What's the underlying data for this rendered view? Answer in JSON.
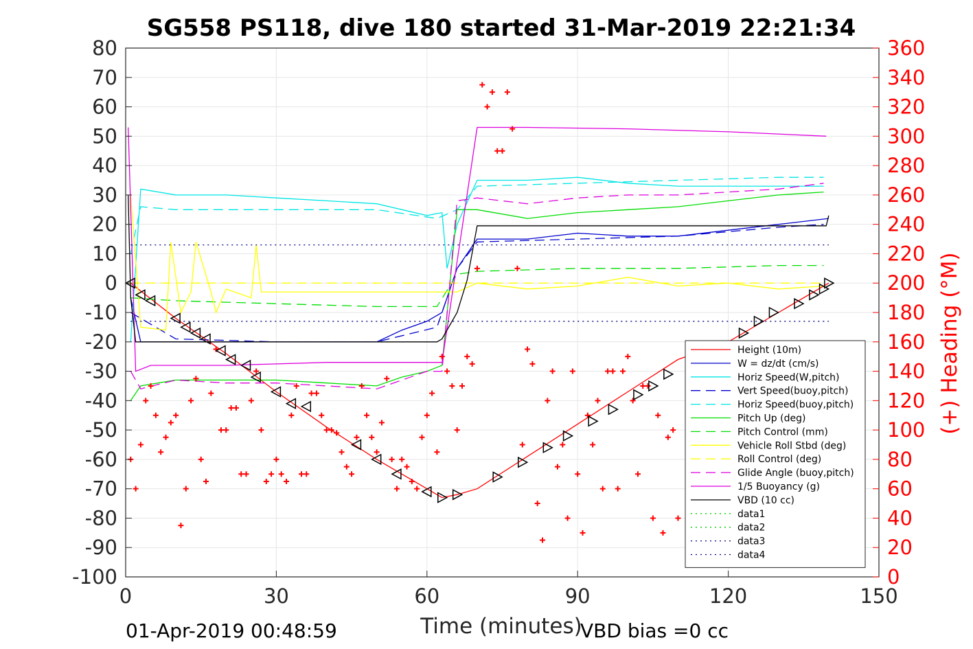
{
  "chart_data": {
    "type": "line",
    "title": "SG558 PS118, dive 180 started 31-Mar-2019 22:21:34",
    "xlabel": "Time (minutes)",
    "ylabel_right": "(+) Heading (°M)",
    "footer_left": "01-Apr-2019 00:48:59",
    "footer_right": "VBD bias =0 cc",
    "xlim": [
      0,
      150
    ],
    "ylim": [
      -100,
      80
    ],
    "ylim_right": [
      0,
      360
    ],
    "xticks": [
      0,
      30,
      60,
      90,
      120,
      150
    ],
    "yticks": [
      80,
      70,
      60,
      50,
      40,
      30,
      20,
      10,
      0,
      -10,
      -20,
      -30,
      -40,
      -50,
      -60,
      -70,
      -80,
      -90,
      -100
    ],
    "yticks_right": [
      360,
      340,
      320,
      300,
      280,
      260,
      240,
      220,
      200,
      180,
      160,
      140,
      120,
      100,
      80,
      60,
      40,
      20,
      0
    ],
    "grid": true,
    "legend_position": "bottom-right",
    "series": [
      {
        "name": "Height (10m)",
        "color": "#ff0000",
        "style": "solid",
        "x": [
          1,
          10,
          20,
          30,
          40,
          50,
          60,
          63,
          66,
          70,
          80,
          90,
          100,
          110,
          120,
          130,
          140
        ],
        "y": [
          0,
          -12,
          -24,
          -37,
          -49,
          -60,
          -70,
          -73,
          -72,
          -70,
          -59,
          -48,
          -37,
          -26,
          -20,
          -10,
          0
        ]
      },
      {
        "name": "W = dz/dt (cm/s)",
        "color": "#0000cc",
        "style": "solid",
        "x": [
          1,
          3,
          10,
          20,
          30,
          40,
          50,
          55,
          60,
          63,
          66,
          70,
          80,
          90,
          100,
          110,
          120,
          130,
          140
        ],
        "y": [
          -5,
          -20,
          -20,
          -20,
          -20,
          -20,
          -20,
          -16,
          -13,
          -10,
          5,
          15,
          15,
          17,
          16,
          16,
          18,
          20,
          22
        ]
      },
      {
        "name": "Horiz Speed(W,pitch)",
        "color": "#00e5e5",
        "style": "solid",
        "x": [
          1,
          3,
          10,
          20,
          30,
          40,
          50,
          60,
          63,
          64,
          66,
          70,
          80,
          90,
          100,
          110,
          120,
          130,
          139
        ],
        "y": [
          -20,
          32,
          30,
          30,
          29,
          28,
          27,
          23,
          24,
          5,
          20,
          35,
          35,
          36,
          34,
          33,
          33,
          33,
          33
        ]
      },
      {
        "name": "Vert Speed(buoy,pitch)",
        "color": "#0000cc",
        "style": "dash",
        "x": [
          1,
          10,
          30,
          50,
          62,
          66,
          70,
          90,
          110,
          130,
          139
        ],
        "y": [
          -10,
          -19,
          -20,
          -20,
          -15,
          5,
          14,
          15,
          16,
          19,
          20
        ]
      },
      {
        "name": "Horiz Speed(buoy,pitch)",
        "color": "#00e5e5",
        "style": "dash",
        "x": [
          1,
          3,
          10,
          30,
          50,
          62,
          66,
          70,
          90,
          110,
          130,
          139
        ],
        "y": [
          10,
          26,
          25,
          25,
          25,
          22,
          25,
          33,
          34,
          35,
          36,
          36
        ]
      },
      {
        "name": "Pitch Up (deg)",
        "color": "#00dd00",
        "style": "solid",
        "x": [
          1,
          3,
          10,
          20,
          30,
          40,
          50,
          55,
          60,
          63,
          66,
          70,
          80,
          90,
          100,
          110,
          120,
          130,
          139
        ],
        "y": [
          -40,
          -35,
          -33,
          -33,
          -33,
          -34,
          -35,
          -32,
          -30,
          -28,
          25,
          25,
          22,
          24,
          25,
          26,
          28,
          30,
          31
        ]
      },
      {
        "name": "Pitch Control (mm)",
        "color": "#00dd00",
        "style": "dash",
        "x": [
          1,
          10,
          30,
          50,
          62,
          66,
          70,
          90,
          110,
          130,
          139
        ],
        "y": [
          -5,
          -6,
          -7,
          -8,
          -8,
          3,
          4,
          5,
          5,
          6,
          6
        ]
      },
      {
        "name": "Vehicle Roll Stbd (deg)",
        "color": "#ffff00",
        "style": "solid",
        "x": [
          1,
          3,
          8,
          9,
          11,
          13,
          14,
          17,
          18,
          20,
          25,
          26,
          27,
          40,
          53,
          62,
          66,
          70,
          80,
          90,
          100,
          110,
          120,
          130,
          139
        ],
        "y": [
          30,
          -15,
          -16,
          14,
          -10,
          -3,
          14,
          -3,
          -10,
          -2,
          -5,
          13,
          -3,
          -3,
          -3,
          -3,
          -3,
          0,
          -2,
          -1,
          2,
          -1,
          0,
          -2,
          -1
        ]
      },
      {
        "name": "Roll Control (deg)",
        "color": "#ffff00",
        "style": "dash",
        "x": [
          1,
          10,
          30,
          50,
          62,
          66,
          70,
          90,
          110,
          130,
          139
        ],
        "y": [
          0,
          0,
          0,
          0,
          0,
          0,
          0,
          0,
          0,
          0,
          0
        ]
      },
      {
        "name": "Glide Angle (buoy,pitch)",
        "color": "#dd00dd",
        "style": "dash",
        "x": [
          1,
          3,
          10,
          20,
          30,
          40,
          50,
          60,
          63,
          66,
          70,
          80,
          90,
          100,
          110,
          120,
          130,
          139
        ],
        "y": [
          -30,
          -36,
          -33,
          -34,
          -34,
          -35,
          -36,
          -30,
          -30,
          28,
          29,
          27,
          29,
          30,
          30,
          31,
          32,
          34
        ]
      },
      {
        "name": "1/5 Buoyancy (g)",
        "color": "#dd00dd",
        "style": "solid",
        "x": [
          0.5,
          2,
          5,
          20,
          40,
          62,
          63,
          70,
          80,
          100,
          120,
          139.5
        ],
        "y": [
          53,
          -30,
          -28,
          -28,
          -27,
          -27,
          -27,
          53,
          53,
          52.5,
          51.5,
          50
        ]
      },
      {
        "name": "VBD (10 cc)",
        "color": "#000000",
        "style": "solid",
        "x": [
          0.5,
          1,
          2,
          10,
          20,
          40,
          62,
          63,
          66,
          68,
          70,
          100,
          139.5,
          140
        ],
        "y": [
          30,
          -5,
          -20,
          -20,
          -20,
          -20,
          -20,
          -19,
          -10,
          1,
          19.5,
          19.5,
          19.5,
          23
        ]
      },
      {
        "name": "data1",
        "color": "#00cc00",
        "style": "dot",
        "x": [],
        "y": []
      },
      {
        "name": "data2",
        "color": "#00cc00",
        "style": "dot",
        "x": [],
        "y": []
      },
      {
        "name": "data3",
        "color": "#000080",
        "style": "dot",
        "x": [
          1,
          140
        ],
        "y": [
          13,
          13
        ]
      },
      {
        "name": "data4",
        "color": "#000080",
        "style": "dot",
        "x": [
          1,
          140
        ],
        "y": [
          -13,
          -13
        ]
      }
    ],
    "heading_series": {
      "name": "(+) Heading (°M)",
      "axis": "right",
      "color": "#ff0000",
      "marker": "+",
      "x": [
        1,
        2,
        3,
        4,
        5,
        6,
        7,
        8,
        9,
        10,
        11,
        12,
        13,
        14,
        15,
        16,
        17,
        18,
        19,
        20,
        21,
        22,
        23,
        24,
        25,
        26,
        27,
        28,
        29,
        30,
        31,
        32,
        33,
        34,
        35,
        36,
        37,
        38,
        39,
        40,
        41,
        42,
        43,
        44,
        45,
        46,
        47,
        48,
        49,
        50,
        51,
        52,
        53,
        54,
        55,
        56,
        57,
        58,
        59,
        60,
        61,
        62,
        63,
        64,
        65,
        66,
        67,
        68,
        69,
        70,
        71,
        72,
        73,
        74,
        75,
        76,
        77,
        78,
        79,
        80,
        81,
        82,
        83,
        84,
        85,
        86,
        87,
        88,
        89,
        90,
        91,
        92,
        93,
        94,
        95,
        96,
        97,
        98,
        99,
        100,
        101,
        102,
        103,
        104,
        105,
        106,
        107,
        108,
        109,
        110
      ],
      "y": [
        80,
        60,
        90,
        120,
        130,
        110,
        85,
        95,
        105,
        110,
        35,
        60,
        120,
        135,
        80,
        65,
        125,
        155,
        100,
        100,
        115,
        115,
        70,
        70,
        120,
        140,
        100,
        65,
        70,
        80,
        70,
        65,
        110,
        130,
        70,
        70,
        125,
        125,
        110,
        100,
        100,
        98,
        85,
        75,
        70,
        95,
        130,
        110,
        95,
        85,
        105,
        135,
        80,
        60,
        80,
        75,
        65,
        60,
        95,
        110,
        125,
        85,
        150,
        140,
        130,
        100,
        130,
        150,
        145,
        210,
        335,
        320,
        330,
        290,
        290,
        330,
        305,
        210,
        90,
        155,
        145,
        50,
        25,
        120,
        140,
        75,
        90,
        40,
        140,
        70,
        30,
        110,
        90,
        120,
        60,
        140,
        140,
        60,
        140,
        150,
        120,
        70,
        130,
        130,
        40,
        110,
        30,
        95,
        100,
        40
      ]
    },
    "profile_markers": {
      "series": "Height (10m)",
      "x": [
        1,
        3,
        5,
        10,
        12,
        14,
        16,
        19,
        21,
        24,
        26,
        30,
        33,
        36,
        46,
        50,
        54,
        60,
        63,
        66,
        74,
        79,
        84,
        88,
        93,
        97,
        102,
        105,
        108,
        123,
        126,
        129,
        134,
        137,
        139,
        140
      ],
      "y": [
        0,
        -4,
        -6,
        -12,
        -15,
        -17,
        -19,
        -23,
        -26,
        -28,
        -32,
        -37,
        -41,
        -42,
        -55,
        -60,
        -65,
        -71,
        -73,
        -72,
        -66,
        -61,
        -56,
        -52,
        -47,
        -43,
        -38,
        -35,
        -31,
        -17,
        -13,
        -10,
        -7,
        -4,
        -2,
        0
      ]
    }
  }
}
